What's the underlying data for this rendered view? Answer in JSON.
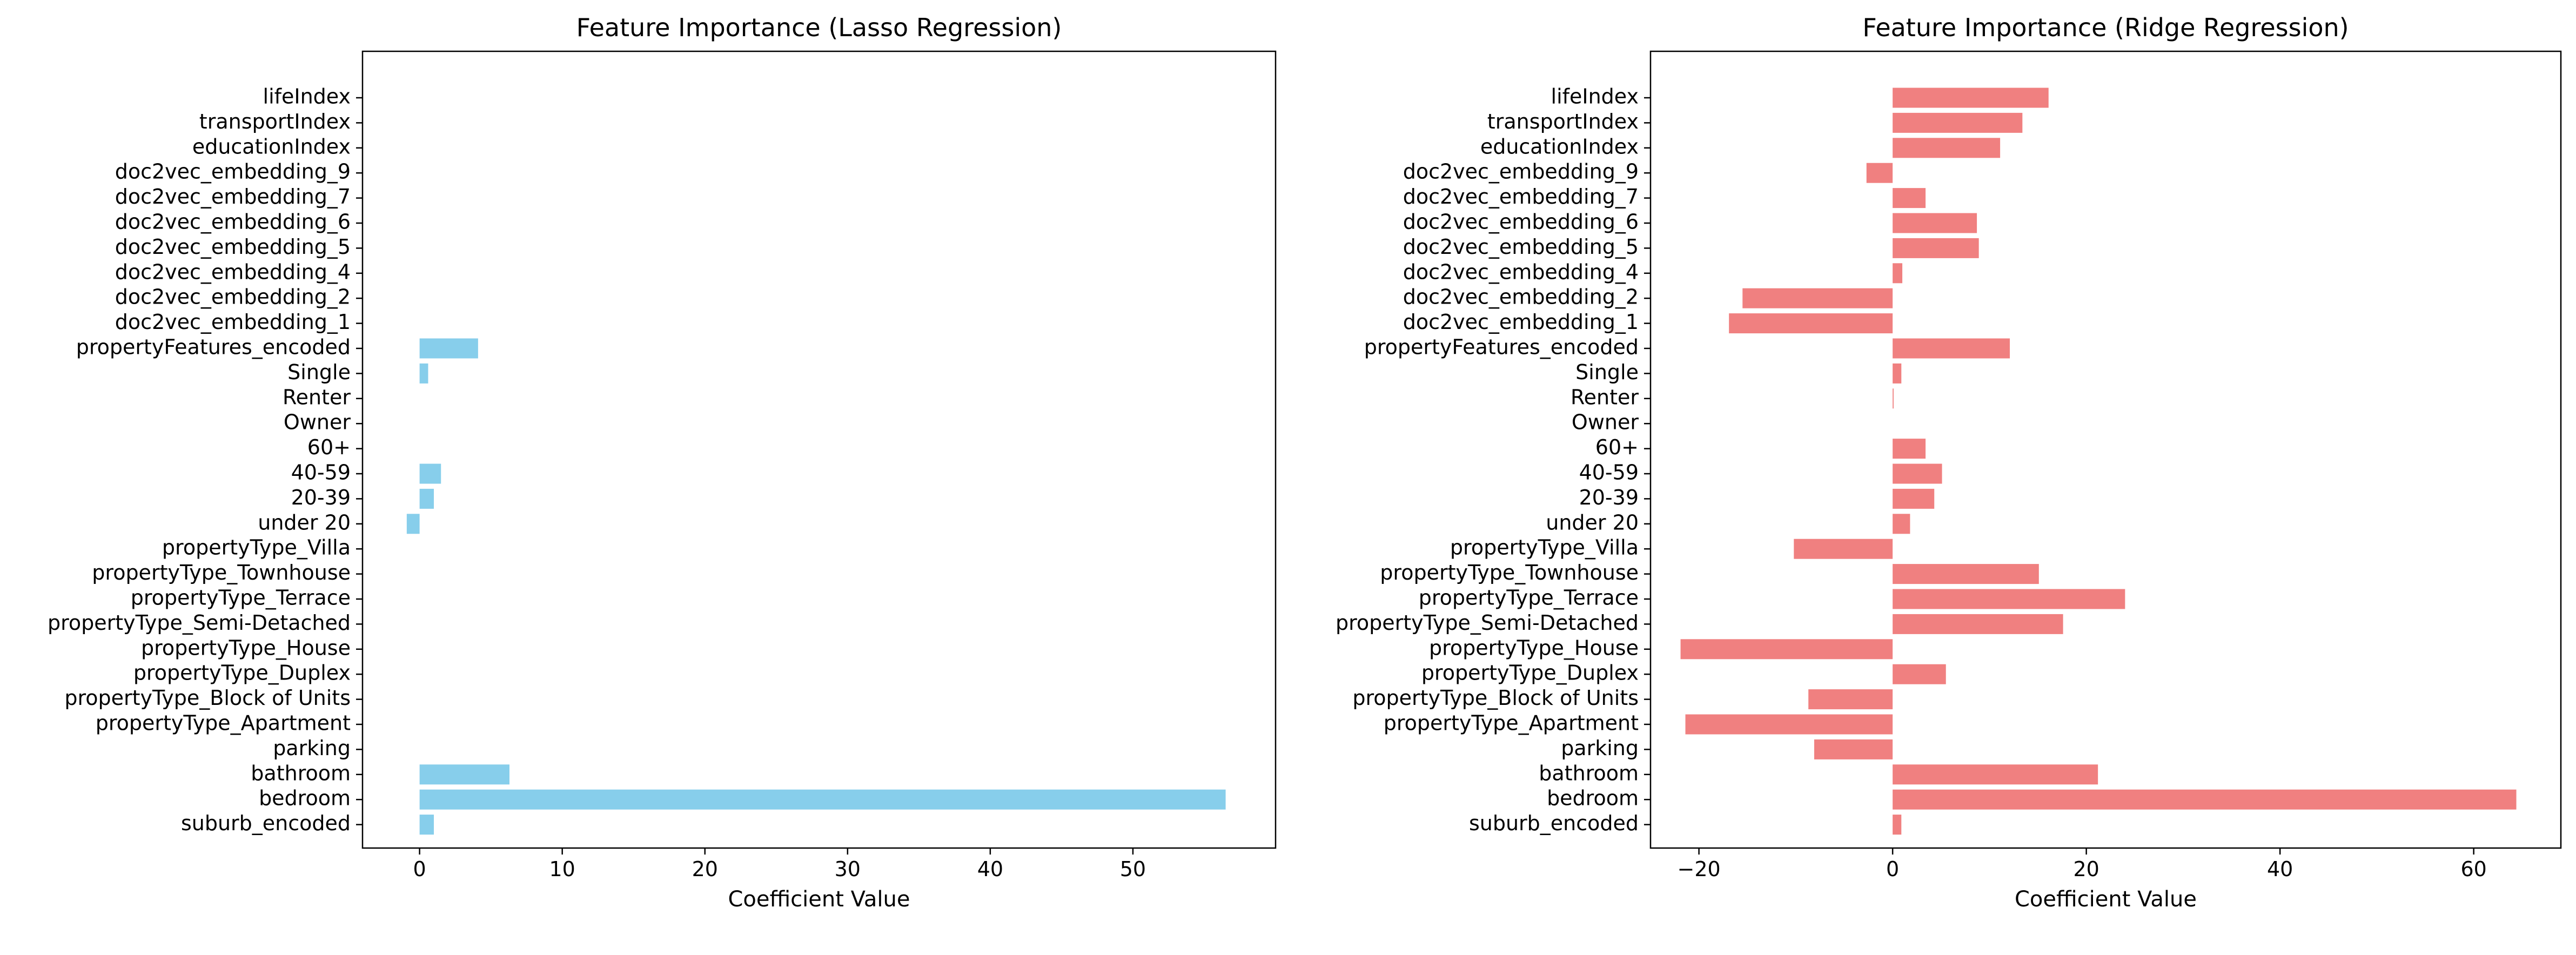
{
  "chart_data": [
    {
      "type": "bar",
      "orientation": "horizontal",
      "title": "Feature Importance (Lasso Regression)",
      "xlabel": "Coefficient Value",
      "ylabel": "",
      "xlim": [
        -4,
        60
      ],
      "xticks": [
        0,
        10,
        20,
        30,
        40,
        50
      ],
      "color": "#87CEEB",
      "grid": false,
      "categories": [
        "suburb_encoded",
        "bedroom",
        "bathroom",
        "parking",
        "propertyType_Apartment",
        "propertyType_Block of Units",
        "propertyType_Duplex",
        "propertyType_House",
        "propertyType_Semi-Detached",
        "propertyType_Terrace",
        "propertyType_Townhouse",
        "propertyType_Villa",
        "under 20",
        "20-39",
        "40-59",
        "60+",
        "Owner",
        "Renter",
        "Single",
        "propertyFeatures_encoded",
        "doc2vec_embedding_1",
        "doc2vec_embedding_2",
        "doc2vec_embedding_4",
        "doc2vec_embedding_5",
        "doc2vec_embedding_6",
        "doc2vec_embedding_7",
        "doc2vec_embedding_9",
        "educationIndex",
        "transportIndex",
        "lifeIndex"
      ],
      "values": [
        1.0,
        56.5,
        6.3,
        0,
        0,
        0,
        0,
        0,
        0,
        0,
        0,
        0,
        -0.9,
        1.0,
        1.5,
        0,
        0,
        0,
        0.6,
        4.1,
        0,
        0,
        0,
        0,
        0,
        0,
        0,
        0,
        0,
        0
      ]
    },
    {
      "type": "bar",
      "orientation": "horizontal",
      "title": "Feature Importance (Ridge Regression)",
      "xlabel": "Coefficient Value",
      "ylabel": "",
      "xlim": [
        -25,
        69
      ],
      "xticks": [
        -20,
        0,
        20,
        40,
        60
      ],
      "color": "#F08080",
      "grid": false,
      "categories": [
        "suburb_encoded",
        "bedroom",
        "bathroom",
        "parking",
        "propertyType_Apartment",
        "propertyType_Block of Units",
        "propertyType_Duplex",
        "propertyType_House",
        "propertyType_Semi-Detached",
        "propertyType_Terrace",
        "propertyType_Townhouse",
        "propertyType_Villa",
        "under 20",
        "20-39",
        "40-59",
        "60+",
        "Owner",
        "Renter",
        "Single",
        "propertyFeatures_encoded",
        "doc2vec_embedding_1",
        "doc2vec_embedding_2",
        "doc2vec_embedding_4",
        "doc2vec_embedding_5",
        "doc2vec_embedding_6",
        "doc2vec_embedding_7",
        "doc2vec_embedding_9",
        "educationIndex",
        "transportIndex",
        "lifeIndex"
      ],
      "values": [
        0.9,
        64.4,
        21.2,
        -8.1,
        -21.4,
        -8.7,
        5.5,
        -21.9,
        17.6,
        24.0,
        15.1,
        -10.2,
        1.8,
        4.3,
        5.1,
        3.4,
        0,
        0.1,
        0.9,
        12.1,
        -16.9,
        -15.5,
        1.0,
        8.9,
        8.7,
        3.4,
        -2.7,
        11.1,
        13.4,
        16.1
      ]
    }
  ]
}
